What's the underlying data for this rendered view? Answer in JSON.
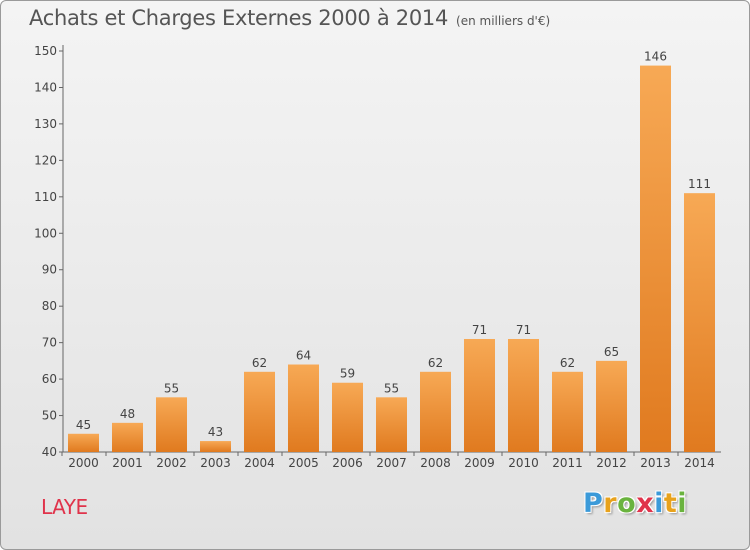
{
  "title": "Achats et Charges Externes 2000 à 2014",
  "subtitle": "(en milliers d'€)",
  "place": "LAYE",
  "logo": {
    "letters": [
      "P",
      "r",
      "o",
      "x",
      "i",
      "t",
      "i"
    ],
    "colors": [
      "#3b9ad9",
      "#e8a21c",
      "#6ab33e",
      "#e0334b",
      "#3b9ad9",
      "#e8a21c",
      "#6ab33e"
    ]
  },
  "colors": {
    "bar_light": "#f7a955",
    "bar_dark": "#e07a1f",
    "title": "#555555",
    "place": "#e0334b"
  },
  "chart_data": {
    "type": "bar",
    "categories": [
      "2000",
      "2001",
      "2002",
      "2003",
      "2004",
      "2005",
      "2006",
      "2007",
      "2008",
      "2009",
      "2010",
      "2011",
      "2012",
      "2013",
      "2014"
    ],
    "values": [
      45,
      48,
      55,
      43,
      62,
      64,
      59,
      55,
      62,
      71,
      71,
      62,
      65,
      146,
      111
    ],
    "ylim": [
      40,
      150
    ],
    "yticks": [
      40,
      50,
      60,
      70,
      80,
      90,
      100,
      110,
      120,
      130,
      140,
      150
    ],
    "grid": false,
    "data_labels": true
  }
}
